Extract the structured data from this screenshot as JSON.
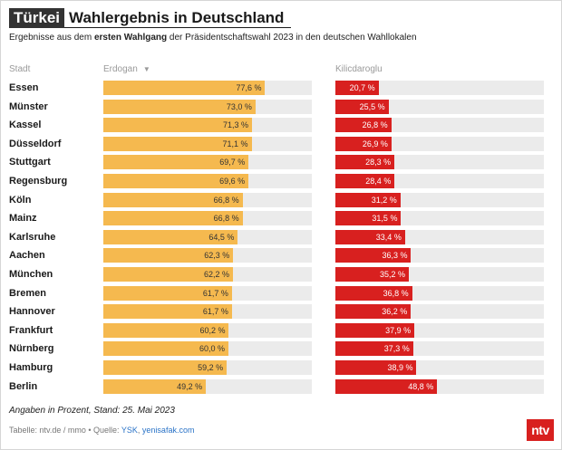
{
  "header": {
    "kicker": "Türkei",
    "title": "Wahlergebnis in Deutschland"
  },
  "subtitle": {
    "pre": "Ergebnisse aus dem ",
    "bold": "ersten Wahlgang",
    "post": " der Präsidentschaftswahl 2023 in den deutschen Wahllokalen"
  },
  "columns": {
    "city": "Stadt",
    "erdogan": "Erdogan",
    "kilicdaroglu": "Kilicdaroglu",
    "sort_icon": "sort-down-icon"
  },
  "colors": {
    "erdogan": "#f5b94f",
    "kilicdaroglu": "#d8201f",
    "track": "#ebebeb"
  },
  "chart_data": {
    "type": "bar",
    "categories": [
      "Essen",
      "Münster",
      "Kassel",
      "Düsseldorf",
      "Stuttgart",
      "Regensburg",
      "Köln",
      "Mainz",
      "Karlsruhe",
      "Aachen",
      "München",
      "Bremen",
      "Hannover",
      "Frankfurt",
      "Nürnberg",
      "Hamburg",
      "Berlin"
    ],
    "xlim": [
      0,
      100
    ],
    "series": [
      {
        "name": "Erdogan",
        "values": [
          77.6,
          73.0,
          71.3,
          71.1,
          69.7,
          69.6,
          66.8,
          66.8,
          64.5,
          62.3,
          62.2,
          61.7,
          61.7,
          60.2,
          60.0,
          59.2,
          49.2
        ],
        "labels": [
          "77,6 %",
          "73,0 %",
          "71,3 %",
          "71,1 %",
          "69,7 %",
          "69,6 %",
          "66,8 %",
          "66,8 %",
          "64,5 %",
          "62,3 %",
          "62,2 %",
          "61,7 %",
          "61,7 %",
          "60,2 %",
          "60,0 %",
          "59,2 %",
          "49,2 %"
        ]
      },
      {
        "name": "Kilicdaroglu",
        "values": [
          20.7,
          25.5,
          26.8,
          26.9,
          28.3,
          28.4,
          31.2,
          31.5,
          33.4,
          36.3,
          35.2,
          36.8,
          36.2,
          37.9,
          37.3,
          38.9,
          48.8
        ],
        "labels": [
          "20,7 %",
          "25,5 %",
          "26,8 %",
          "26,9 %",
          "28,3 %",
          "28,4 %",
          "31,2 %",
          "31,5 %",
          "33,4 %",
          "36,3 %",
          "35,2 %",
          "36,8 %",
          "36,2 %",
          "37,9 %",
          "37,3 %",
          "38,9 %",
          "48,8 %"
        ]
      }
    ]
  },
  "footnote": "Angaben in Prozent, Stand: 25. Mai 2023",
  "source": {
    "prefix": "Tabelle: ntv.de / mmo • Quelle: ",
    "link1": "YSK",
    "sep": ", ",
    "link2": "yenisafak.com"
  },
  "logo": "ntv"
}
